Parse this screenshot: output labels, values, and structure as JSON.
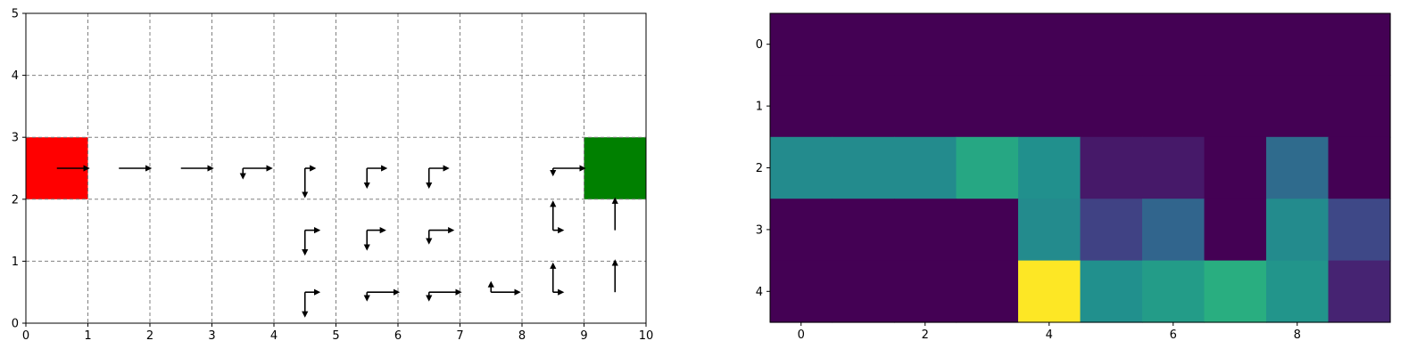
{
  "chart_data": [
    {
      "type": "quiver",
      "xlim": [
        0,
        10
      ],
      "ylim": [
        0,
        5
      ],
      "xticks": [
        "0",
        "1",
        "2",
        "3",
        "4",
        "5",
        "6",
        "7",
        "8",
        "9",
        "10"
      ],
      "yticks": [
        "0",
        "1",
        "2",
        "3",
        "4",
        "5"
      ],
      "grid": true,
      "start_cell": {
        "x": 0,
        "y": 2,
        "color": "#ff0000"
      },
      "goal_cell": {
        "x": 9,
        "y": 2,
        "color": "#008000"
      },
      "arrows": [
        {
          "x": 0.5,
          "y": 2.5,
          "dx": 0.5,
          "dy": 0
        },
        {
          "x": 1.5,
          "y": 2.5,
          "dx": 0.5,
          "dy": 0
        },
        {
          "x": 2.5,
          "y": 2.5,
          "dx": 0.5,
          "dy": 0
        },
        {
          "x": 3.5,
          "y": 2.5,
          "dx": 0.45,
          "dy": 0
        },
        {
          "x": 3.5,
          "y": 2.5,
          "dx": 0,
          "dy": -0.15
        },
        {
          "x": 4.5,
          "y": 2.5,
          "dx": 0.15,
          "dy": 0
        },
        {
          "x": 4.5,
          "y": 2.5,
          "dx": 0,
          "dy": -0.45
        },
        {
          "x": 5.5,
          "y": 2.5,
          "dx": 0.3,
          "dy": 0
        },
        {
          "x": 5.5,
          "y": 2.5,
          "dx": 0,
          "dy": -0.3
        },
        {
          "x": 6.5,
          "y": 2.5,
          "dx": 0.3,
          "dy": 0
        },
        {
          "x": 6.5,
          "y": 2.5,
          "dx": 0,
          "dy": -0.3
        },
        {
          "x": 8.5,
          "y": 2.5,
          "dx": 0.5,
          "dy": 0
        },
        {
          "x": 8.5,
          "y": 2.5,
          "dx": 0,
          "dy": -0.1
        },
        {
          "x": 4.5,
          "y": 1.5,
          "dx": 0.22,
          "dy": 0
        },
        {
          "x": 4.5,
          "y": 1.5,
          "dx": 0,
          "dy": -0.38
        },
        {
          "x": 5.5,
          "y": 1.5,
          "dx": 0.28,
          "dy": 0
        },
        {
          "x": 5.5,
          "y": 1.5,
          "dx": 0,
          "dy": -0.3
        },
        {
          "x": 6.5,
          "y": 1.5,
          "dx": 0.38,
          "dy": 0
        },
        {
          "x": 6.5,
          "y": 1.5,
          "dx": 0,
          "dy": -0.2
        },
        {
          "x": 8.5,
          "y": 1.5,
          "dx": 0.15,
          "dy": 0
        },
        {
          "x": 8.5,
          "y": 1.5,
          "dx": 0,
          "dy": 0.45
        },
        {
          "x": 9.5,
          "y": 1.5,
          "dx": 0,
          "dy": 0.5
        },
        {
          "x": 4.5,
          "y": 0.5,
          "dx": 0.22,
          "dy": 0
        },
        {
          "x": 4.5,
          "y": 0.5,
          "dx": 0,
          "dy": -0.38
        },
        {
          "x": 5.5,
          "y": 0.5,
          "dx": 0.5,
          "dy": 0
        },
        {
          "x": 5.5,
          "y": 0.5,
          "dx": 0,
          "dy": -0.12
        },
        {
          "x": 6.5,
          "y": 0.5,
          "dx": 0.5,
          "dy": 0
        },
        {
          "x": 6.5,
          "y": 0.5,
          "dx": 0,
          "dy": -0.12
        },
        {
          "x": 7.5,
          "y": 0.5,
          "dx": 0.45,
          "dy": 0
        },
        {
          "x": 7.5,
          "y": 0.5,
          "dx": 0,
          "dy": 0.15
        },
        {
          "x": 8.5,
          "y": 0.5,
          "dx": 0.15,
          "dy": 0
        },
        {
          "x": 8.5,
          "y": 0.5,
          "dx": 0,
          "dy": 0.45
        },
        {
          "x": 9.5,
          "y": 0.5,
          "dx": 0,
          "dy": 0.5
        }
      ]
    },
    {
      "type": "heatmap",
      "colormap": "viridis",
      "xticks": [
        "0",
        "2",
        "4",
        "6",
        "8"
      ],
      "yticks": [
        "0",
        "1",
        "2",
        "3",
        "4"
      ],
      "values": [
        [
          0,
          0,
          0,
          0,
          0,
          0,
          0,
          0,
          0,
          0
        ],
        [
          0,
          0,
          0,
          0,
          0,
          0,
          0,
          0,
          0,
          0
        ],
        [
          0.48,
          0.48,
          0.48,
          0.6,
          0.5,
          0.07,
          0.07,
          0,
          0.35,
          0
        ],
        [
          0,
          0,
          0,
          0,
          0.48,
          0.2,
          0.33,
          0,
          0.48,
          0.22
        ],
        [
          0,
          0,
          0,
          0,
          1,
          0.5,
          0.55,
          0.63,
          0.52,
          0.1
        ]
      ]
    }
  ]
}
